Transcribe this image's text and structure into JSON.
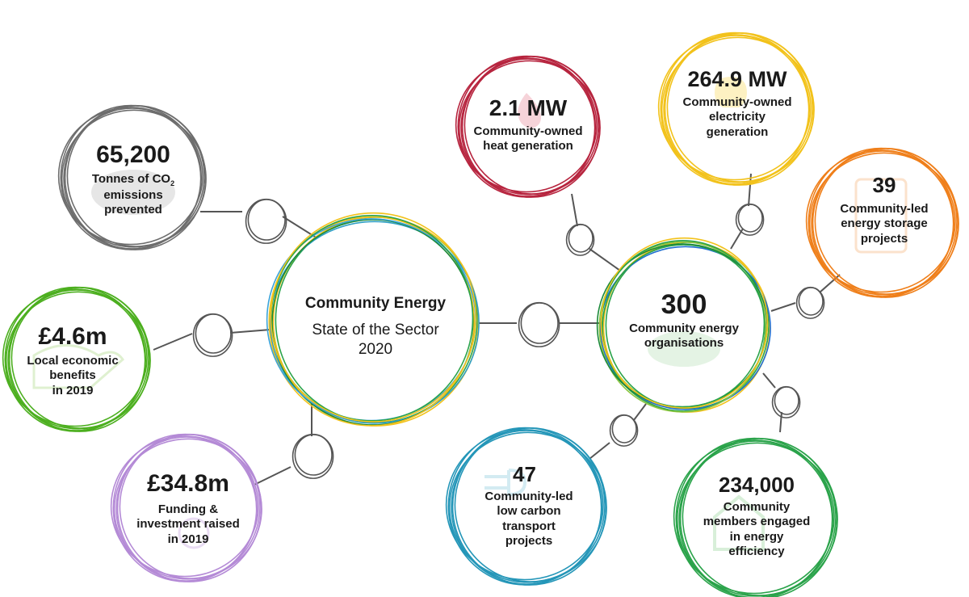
{
  "hub": {
    "title": "Community Energy",
    "subtitle_line1": "State of the Sector",
    "subtitle_line2": "2020",
    "colors": [
      "#2aa34a",
      "#f2c21b",
      "#2f9fc5",
      "#1c8a3a",
      "#f2c21b",
      "#3ba4d8"
    ]
  },
  "orgs": {
    "value": "300",
    "label_line1": "Community energy",
    "label_line2": "organisations",
    "colors": [
      "#2aa34a",
      "#f2c21b",
      "#1f6fd1",
      "#2aa34a",
      "#8cc63f",
      "#1c8a3a"
    ]
  },
  "stats": [
    {
      "key": "co2",
      "value": "65,200",
      "label_parts": [
        "Tonnes of CO",
        "2",
        "emissions",
        "prevented"
      ],
      "color": "#6d6d6d"
    },
    {
      "key": "econ",
      "value": "£4.6m",
      "label_lines": [
        "Local economic",
        "benefits",
        "in 2019"
      ],
      "color": "#4caf1f"
    },
    {
      "key": "funding",
      "value": "£34.8m",
      "label_lines": [
        "Funding &",
        "investment raised",
        "in 2019"
      ],
      "color": "#b48ad6"
    },
    {
      "key": "heat",
      "value": "2.1 MW",
      "label_lines": [
        "Community-owned",
        "heat generation"
      ],
      "color": "#b7253f"
    },
    {
      "key": "elec",
      "value": "264.9 MW",
      "label_lines": [
        "Community-owned",
        "electricity",
        "generation"
      ],
      "color": "#f2c21b"
    },
    {
      "key": "storage",
      "value": "39",
      "label_lines": [
        "Community-led",
        "energy storage",
        "projects"
      ],
      "color": "#ef7f1a"
    },
    {
      "key": "transport",
      "value": "47",
      "label_lines": [
        "Community-led",
        "low carbon",
        "transport",
        "projects"
      ],
      "color": "#2496b8"
    },
    {
      "key": "efficiency",
      "value": "234,000",
      "label_lines": [
        "Community",
        "members engaged",
        "in energy",
        "efficiency"
      ],
      "color": "#2aa34a"
    }
  ],
  "connector_color": "#555555"
}
